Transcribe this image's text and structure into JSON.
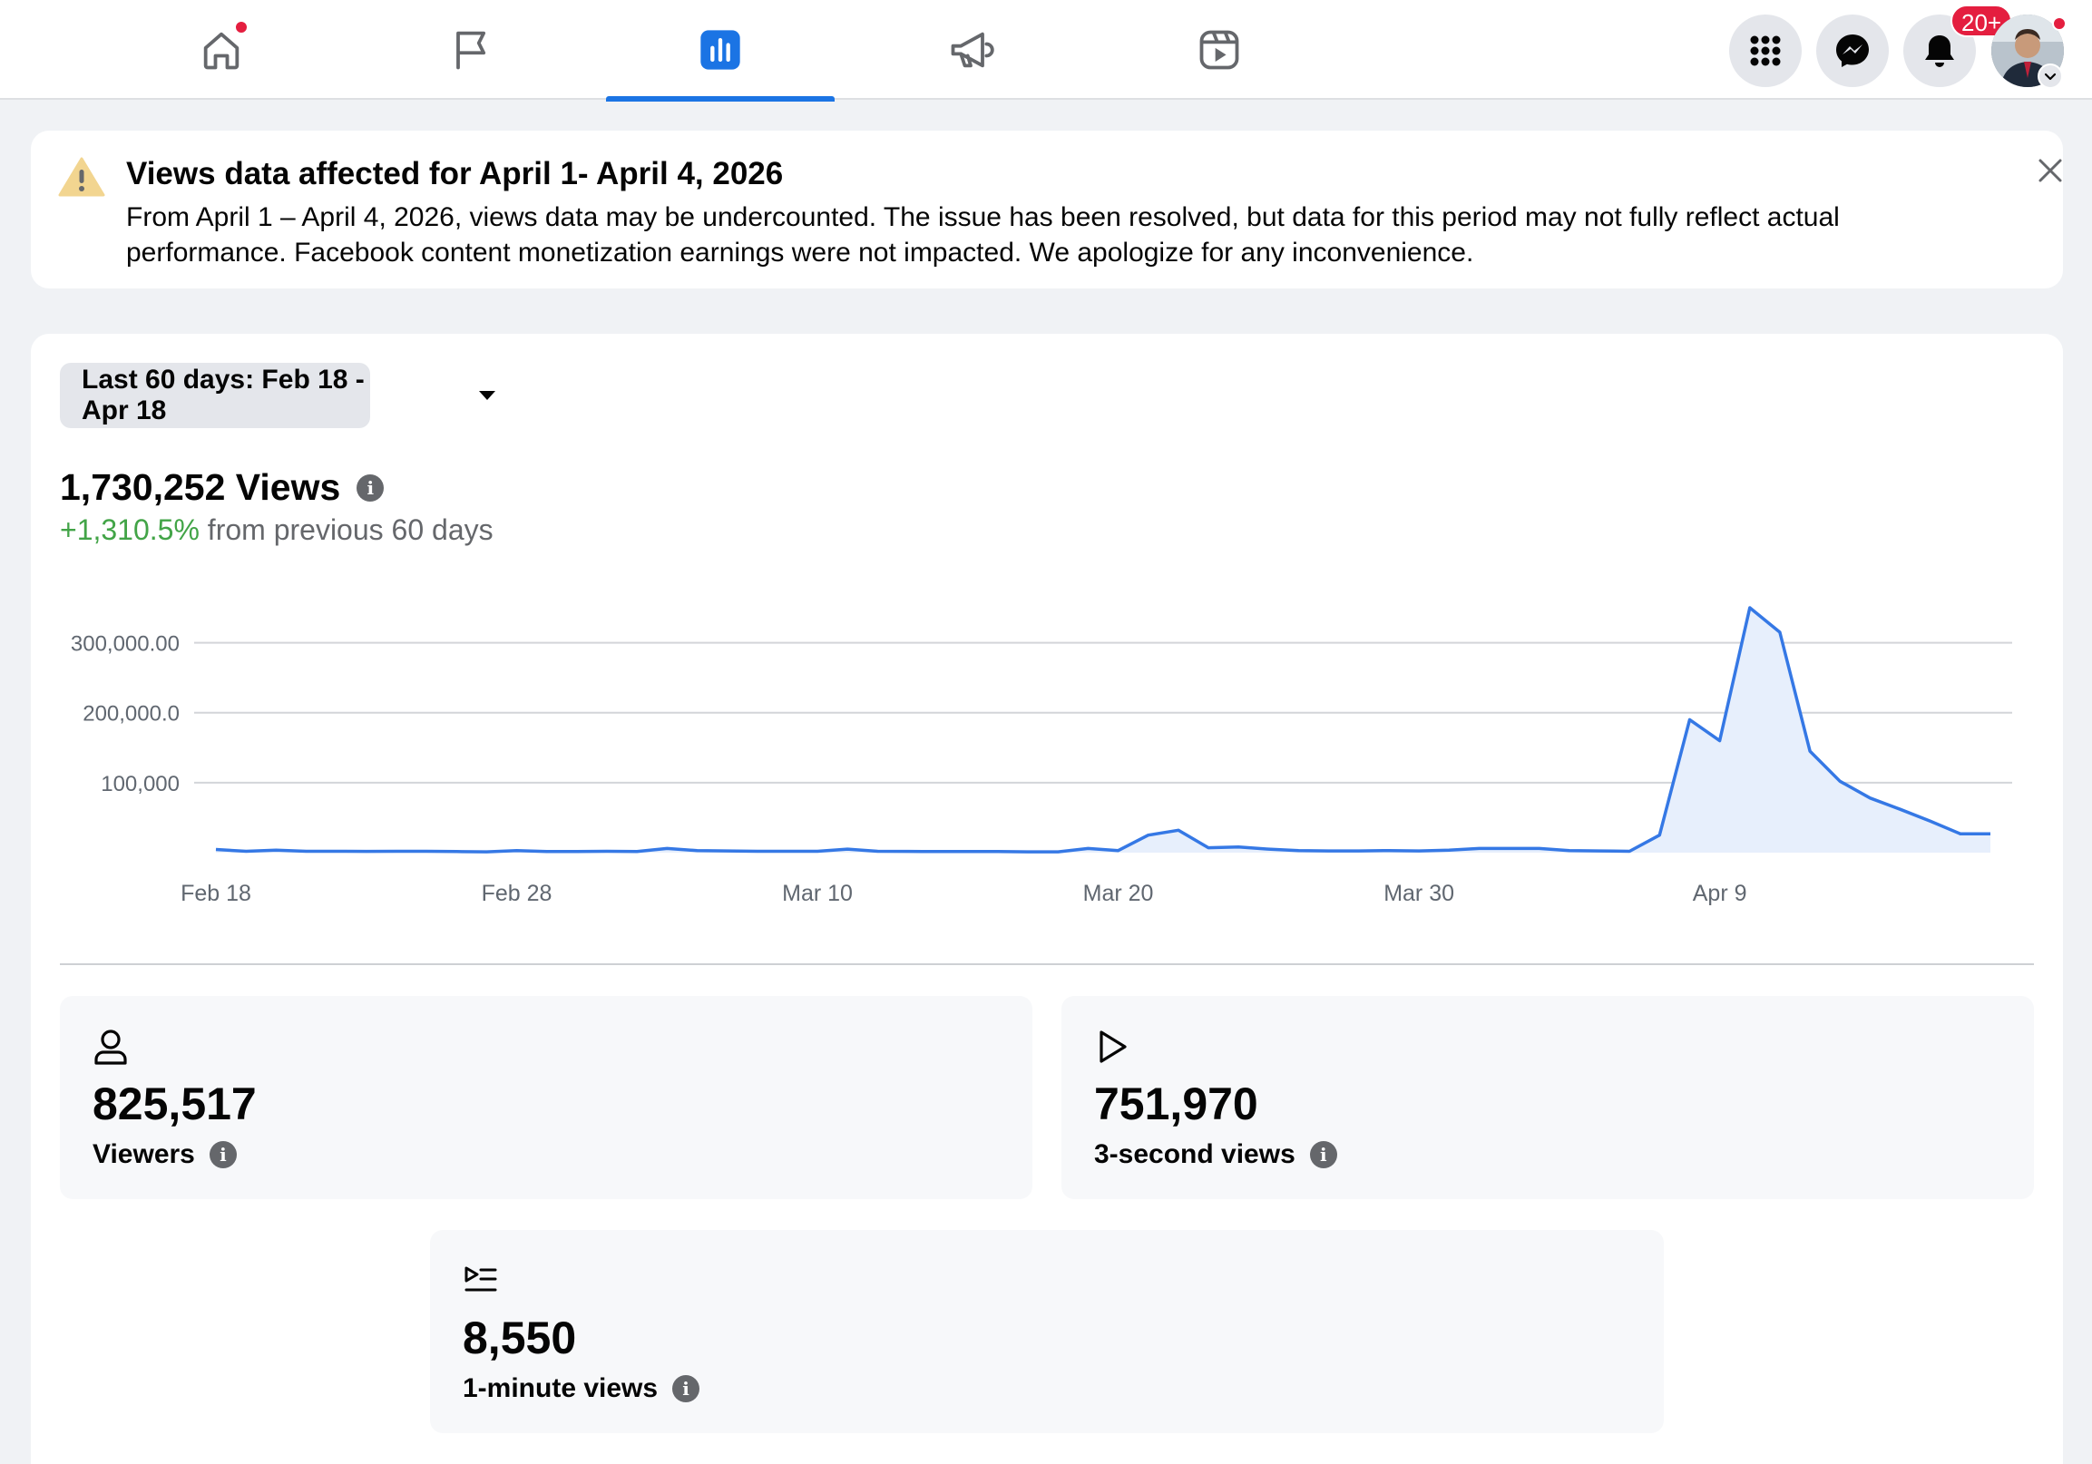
{
  "nav": {
    "tabs": [
      {
        "name": "home",
        "icon": "home-icon",
        "active": false
      },
      {
        "name": "pages",
        "icon": "flag-icon",
        "active": false
      },
      {
        "name": "insights",
        "icon": "bar-chart-icon",
        "active": true
      },
      {
        "name": "ads",
        "icon": "megaphone-icon",
        "active": false
      },
      {
        "name": "reels",
        "icon": "reels-icon",
        "active": false
      }
    ],
    "notifications_badge": "20+"
  },
  "banner": {
    "title": "Views data affected for April 1- April 4, 2026",
    "body": "From April 1 – April 4, 2026, views data may be undercounted. The issue has been resolved, but data for this period may not fully reflect actual performance. Facebook content monetization earnings were not impacted. We apologize for any inconvenience."
  },
  "filter": {
    "range_label": "Last 60 days: Feb 18 - Apr 18"
  },
  "summary": {
    "views_total": "1,730,252 Views",
    "change_pct": "+1,310.5%",
    "change_suffix": " from previous 60 days"
  },
  "chart_data": {
    "type": "area",
    "xlabel": "",
    "ylabel": "",
    "ylim": [
      0,
      350000
    ],
    "y_ticks": [
      {
        "value": 300000,
        "label": "300,000.00"
      },
      {
        "value": 200000,
        "label": "200,000.0"
      },
      {
        "value": 100000,
        "label": "100,000"
      }
    ],
    "x_ticks": [
      "Feb 18",
      "Feb 28",
      "Mar 10",
      "Mar 20",
      "Mar 30",
      "Apr 9"
    ],
    "grid": true,
    "color": "#3578e5",
    "fill": "#e7effc",
    "series": [
      {
        "dates": [
          "Feb 18",
          "Feb 19",
          "Feb 20",
          "Feb 21",
          "Feb 22",
          "Feb 23",
          "Feb 24",
          "Feb 25",
          "Feb 26",
          "Feb 27",
          "Feb 28",
          "Mar 1",
          "Mar 2",
          "Mar 3",
          "Mar 4",
          "Mar 5",
          "Mar 6",
          "Mar 7",
          "Mar 8",
          "Mar 9",
          "Mar 10",
          "Mar 11",
          "Mar 12",
          "Mar 13",
          "Mar 14",
          "Mar 15",
          "Mar 16",
          "Mar 17",
          "Mar 18",
          "Mar 19",
          "Mar 20",
          "Mar 21",
          "Mar 22",
          "Mar 23",
          "Mar 24",
          "Mar 25",
          "Mar 26",
          "Mar 27",
          "Mar 28",
          "Mar 29",
          "Mar 30",
          "Mar 31",
          "Apr 1",
          "Apr 2",
          "Apr 3",
          "Apr 4",
          "Apr 5",
          "Apr 6",
          "Apr 7",
          "Apr 8",
          "Apr 9",
          "Apr 10",
          "Apr 11",
          "Apr 12",
          "Apr 13",
          "Apr 14",
          "Apr 15",
          "Apr 16",
          "Apr 17",
          "Apr 18"
        ],
        "values": [
          4500,
          2000,
          3500,
          2000,
          2000,
          1800,
          2000,
          2000,
          1500,
          1200,
          3000,
          1500,
          1500,
          2000,
          1500,
          6000,
          3000,
          2500,
          2000,
          2000,
          2000,
          5000,
          2000,
          1800,
          1500,
          1500,
          1500,
          1200,
          1200,
          6000,
          3000,
          25000,
          32000,
          7000,
          8000,
          5000,
          3000,
          2500,
          2500,
          3000,
          2500,
          3500,
          6000,
          6000,
          6000,
          3000,
          2500,
          2000,
          25000,
          190000,
          160000,
          350000,
          315000,
          145000,
          102000,
          78000,
          62000,
          45000,
          27000,
          27000
        ]
      }
    ]
  },
  "metrics": [
    {
      "icon": "person-icon",
      "value": "825,517",
      "label": "Viewers"
    },
    {
      "icon": "play-icon",
      "value": "751,970",
      "label": "3-second views"
    },
    {
      "icon": "play-list-icon",
      "value": "8,550",
      "label": "1-minute views"
    }
  ]
}
